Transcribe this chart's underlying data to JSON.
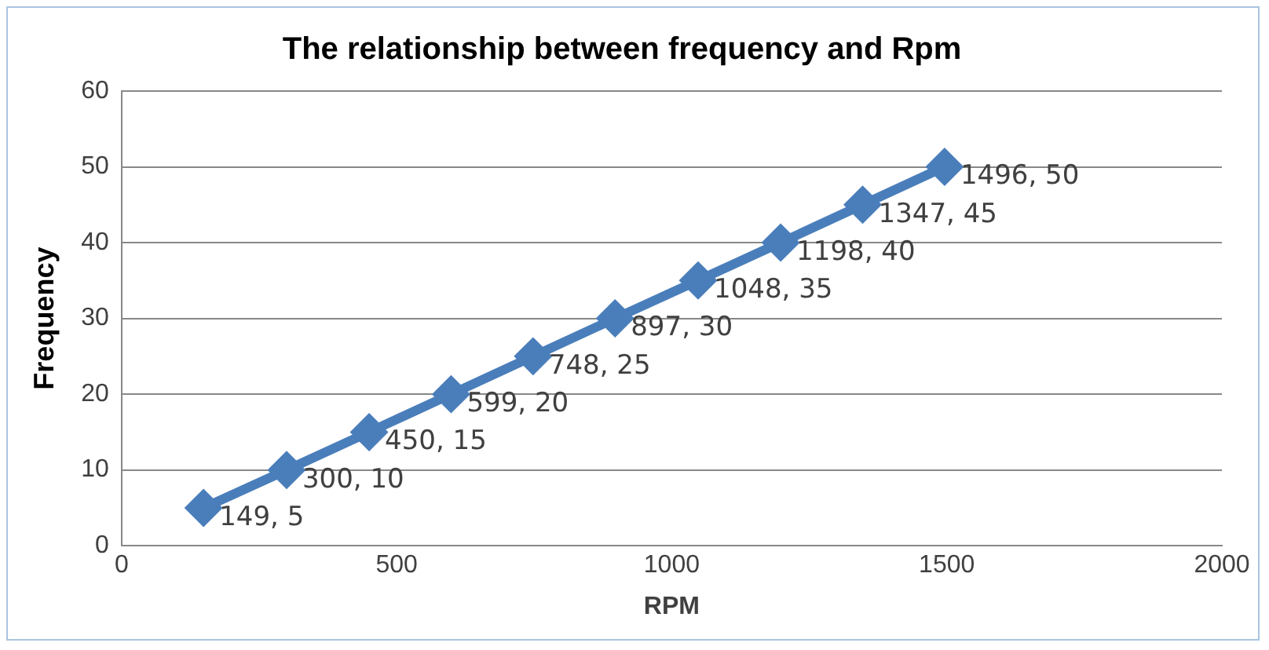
{
  "chart_data": {
    "type": "line",
    "title": "The relationship between frequency and Rpm",
    "xlabel": "RPM",
    "ylabel": "Frequency",
    "x": [
      149,
      300,
      450,
      599,
      748,
      897,
      1048,
      1198,
      1347,
      1496
    ],
    "series": [
      {
        "color": "#4a7ebb",
        "values": [
          5,
          10,
          15,
          20,
          25,
          30,
          35,
          40,
          45,
          50
        ],
        "value_labels": [
          "149, 5",
          "300, 10",
          "450, 15",
          "599, 20",
          "748, 25",
          "897, 30",
          "1048, 35",
          "1198, 40",
          "1347, 45",
          "1496, 50"
        ]
      }
    ],
    "xlim": [
      0,
      2000
    ],
    "xticks": [
      0,
      500,
      1000,
      1500,
      2000
    ],
    "ylim": [
      0,
      60
    ],
    "yticks": [
      0,
      10,
      20,
      30,
      40,
      50,
      60
    ],
    "grid": "y",
    "legend": false,
    "marker": "diamond",
    "line_style": "solid"
  }
}
